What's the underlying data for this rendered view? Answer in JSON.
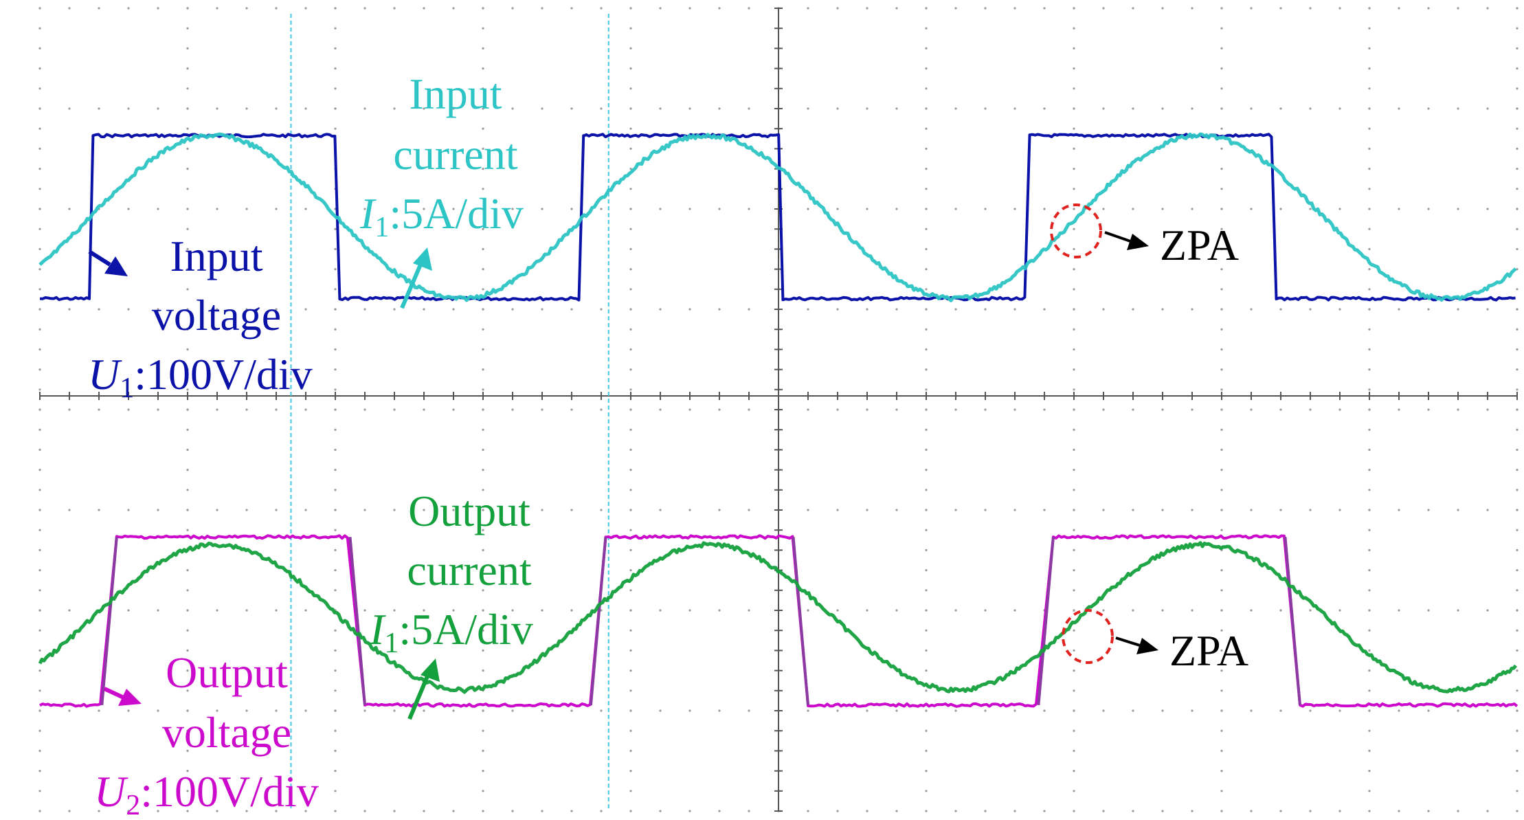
{
  "colors": {
    "input_voltage": "#0a12a8",
    "input_current": "#2cc4c4",
    "output_voltage": "#cc0acc",
    "output_current": "#14a03c",
    "output_voltage_edge": "#8a3aa0",
    "zpa_marker": "#e0231e",
    "annotation_text": "#000000",
    "grid": "#9a9a9a",
    "axis": "#555555",
    "cursor": "#45c6e0"
  },
  "labels": {
    "input_current": {
      "line1": "Input",
      "line2": "current",
      "symbol": "I",
      "subscript": "1",
      "scale": ":5A/div"
    },
    "input_voltage": {
      "line1": "Input",
      "line2": "voltage",
      "symbol": "U",
      "subscript": "1",
      "scale": ":100V/div"
    },
    "output_current": {
      "line1": "Output",
      "line2": "current",
      "symbol": "I",
      "subscript": "1",
      "scale": ":5A/div"
    },
    "output_voltage": {
      "line1": "Output",
      "line2": "voltage",
      "symbol": "U",
      "subscript": "2",
      "scale": ":100V/div"
    },
    "zpa_top": "ZPA",
    "zpa_bottom": "ZPA"
  },
  "chart_data": {
    "type": "line",
    "grid": true,
    "x_divisions": 10,
    "y_divisions": 8,
    "upper_panel": {
      "x_range_div": [
        0,
        10
      ],
      "square_wave": {
        "name": "Input voltage",
        "low_div": -0.5,
        "high_div": 2.75,
        "transitions_div": [
          0.34,
          2.01,
          3.66,
          5.01,
          6.68,
          8.35,
          10.0
        ],
        "starts_high": false
      },
      "sine_wave": {
        "name": "Input current",
        "period_div": 3.34,
        "peak_div": 2.75,
        "trough_div": -0.5,
        "mean_div": 1.12,
        "phase_zero_div": 0.34
      }
    },
    "lower_panel": {
      "x_range_div": [
        0,
        10
      ],
      "square_wave": {
        "name": "Output voltage",
        "low_div": -0.6,
        "high_div": 2.75,
        "transitions_div": [
          0.42,
          2.1,
          3.73,
          5.1,
          6.76,
          8.43,
          10.0
        ],
        "starts_high": false
      },
      "sine_wave": {
        "name": "Output current",
        "period_div": 3.34,
        "peak_div": 2.6,
        "trough_div": -0.3,
        "mean_div": 1.15,
        "phase_zero_div": 0.36
      }
    },
    "cursors_div": [
      1.7,
      3.85
    ]
  }
}
